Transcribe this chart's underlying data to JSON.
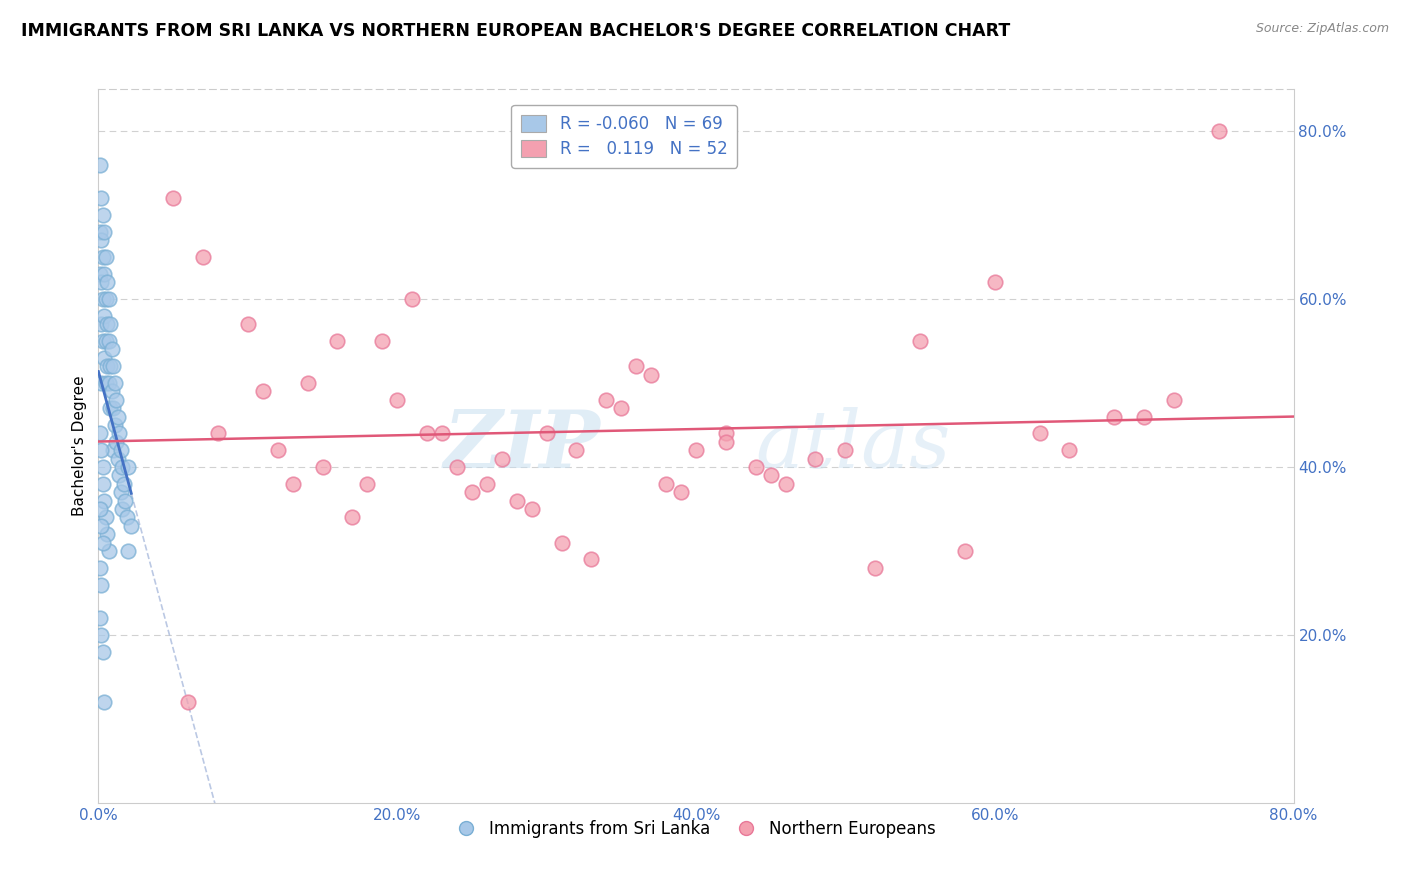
{
  "title": "IMMIGRANTS FROM SRI LANKA VS NORTHERN EUROPEAN BACHELOR'S DEGREE CORRELATION CHART",
  "source_text": "Source: ZipAtlas.com",
  "ylabel": "Bachelor's Degree",
  "xlim": [
    0.0,
    0.8
  ],
  "ylim": [
    0.0,
    0.85
  ],
  "x_tick_labels": [
    "0.0%",
    "20.0%",
    "40.0%",
    "60.0%",
    "80.0%"
  ],
  "x_tick_vals": [
    0.0,
    0.2,
    0.4,
    0.6,
    0.8
  ],
  "y_tick_labels": [
    "20.0%",
    "40.0%",
    "60.0%",
    "80.0%"
  ],
  "y_tick_vals": [
    0.2,
    0.4,
    0.6,
    0.8
  ],
  "blue_R": -0.06,
  "blue_N": 69,
  "pink_R": 0.119,
  "pink_N": 52,
  "blue_color": "#a8c8e8",
  "pink_color": "#f4a0b0",
  "blue_edge_color": "#7aafd4",
  "pink_edge_color": "#e87898",
  "blue_line_color": "#4472c4",
  "pink_line_color": "#e05878",
  "blue_dashed_color": "#aabbdd",
  "watermark_zip": "ZIP",
  "watermark_atlas": "atlas",
  "blue_scatter_x": [
    0.001,
    0.001,
    0.001,
    0.002,
    0.002,
    0.002,
    0.002,
    0.002,
    0.003,
    0.003,
    0.003,
    0.003,
    0.004,
    0.004,
    0.004,
    0.004,
    0.005,
    0.005,
    0.005,
    0.005,
    0.006,
    0.006,
    0.006,
    0.007,
    0.007,
    0.007,
    0.008,
    0.008,
    0.008,
    0.009,
    0.009,
    0.01,
    0.01,
    0.01,
    0.011,
    0.011,
    0.012,
    0.012,
    0.013,
    0.013,
    0.014,
    0.014,
    0.015,
    0.015,
    0.016,
    0.016,
    0.017,
    0.018,
    0.019,
    0.02,
    0.02,
    0.022,
    0.001,
    0.002,
    0.003,
    0.003,
    0.004,
    0.005,
    0.006,
    0.007,
    0.001,
    0.002,
    0.003,
    0.001,
    0.002,
    0.001,
    0.002,
    0.003,
    0.004
  ],
  "blue_scatter_y": [
    0.76,
    0.68,
    0.63,
    0.72,
    0.67,
    0.62,
    0.57,
    0.5,
    0.7,
    0.65,
    0.6,
    0.55,
    0.68,
    0.63,
    0.58,
    0.53,
    0.65,
    0.6,
    0.55,
    0.5,
    0.62,
    0.57,
    0.52,
    0.6,
    0.55,
    0.5,
    0.57,
    0.52,
    0.47,
    0.54,
    0.49,
    0.52,
    0.47,
    0.42,
    0.5,
    0.45,
    0.48,
    0.43,
    0.46,
    0.41,
    0.44,
    0.39,
    0.42,
    0.37,
    0.4,
    0.35,
    0.38,
    0.36,
    0.34,
    0.4,
    0.3,
    0.33,
    0.44,
    0.42,
    0.4,
    0.38,
    0.36,
    0.34,
    0.32,
    0.3,
    0.35,
    0.33,
    0.31,
    0.28,
    0.26,
    0.22,
    0.2,
    0.18,
    0.12
  ],
  "pink_scatter_x": [
    0.05,
    0.07,
    0.1,
    0.12,
    0.14,
    0.16,
    0.18,
    0.2,
    0.22,
    0.24,
    0.26,
    0.28,
    0.3,
    0.32,
    0.34,
    0.36,
    0.38,
    0.4,
    0.42,
    0.44,
    0.46,
    0.5,
    0.55,
    0.6,
    0.65,
    0.7,
    0.75,
    0.08,
    0.11,
    0.13,
    0.15,
    0.17,
    0.19,
    0.21,
    0.23,
    0.25,
    0.27,
    0.29,
    0.31,
    0.33,
    0.35,
    0.37,
    0.39,
    0.42,
    0.45,
    0.48,
    0.52,
    0.58,
    0.63,
    0.68,
    0.72,
    0.06
  ],
  "pink_scatter_y": [
    0.72,
    0.65,
    0.57,
    0.42,
    0.5,
    0.55,
    0.38,
    0.48,
    0.44,
    0.4,
    0.38,
    0.36,
    0.44,
    0.42,
    0.48,
    0.52,
    0.38,
    0.42,
    0.44,
    0.4,
    0.38,
    0.42,
    0.55,
    0.62,
    0.42,
    0.46,
    0.8,
    0.44,
    0.49,
    0.38,
    0.4,
    0.34,
    0.55,
    0.6,
    0.44,
    0.37,
    0.41,
    0.35,
    0.31,
    0.29,
    0.47,
    0.51,
    0.37,
    0.43,
    0.39,
    0.41,
    0.28,
    0.3,
    0.44,
    0.46,
    0.48,
    0.12
  ]
}
